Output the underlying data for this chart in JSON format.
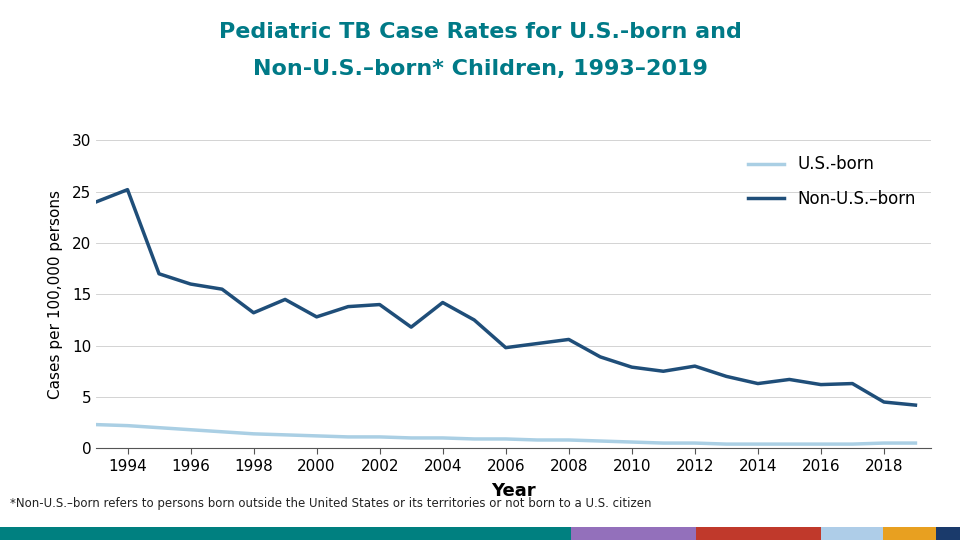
{
  "title_line1": "Pediatric TB Case Rates for U.S.-born and",
  "title_line2": "Non-U.S.–born* Children, 1993–2019",
  "title_color": "#007A87",
  "xlabel": "Year",
  "ylabel": "Cases per 100,000 persons",
  "footnote": "*Non-U.S.–born refers to persons born outside the United States or its territories or not born to a U.S. citizen",
  "ylim": [
    0,
    30
  ],
  "yticks": [
    0,
    5,
    10,
    15,
    20,
    25,
    30
  ],
  "years": [
    1993,
    1994,
    1995,
    1996,
    1997,
    1998,
    1999,
    2000,
    2001,
    2002,
    2003,
    2004,
    2005,
    2006,
    2007,
    2008,
    2009,
    2010,
    2011,
    2012,
    2013,
    2014,
    2015,
    2016,
    2017,
    2018,
    2019
  ],
  "us_born": [
    2.3,
    2.2,
    2.0,
    1.8,
    1.6,
    1.4,
    1.3,
    1.2,
    1.1,
    1.1,
    1.0,
    1.0,
    0.9,
    0.9,
    0.8,
    0.8,
    0.7,
    0.6,
    0.5,
    0.5,
    0.4,
    0.4,
    0.4,
    0.4,
    0.4,
    0.5,
    0.5
  ],
  "non_us_born": [
    24.0,
    25.2,
    17.0,
    16.0,
    15.5,
    13.2,
    14.5,
    12.8,
    13.8,
    14.0,
    11.8,
    14.2,
    12.5,
    9.8,
    10.2,
    10.6,
    8.9,
    7.9,
    7.5,
    8.0,
    7.0,
    6.3,
    6.7,
    6.2,
    6.3,
    4.5,
    4.2
  ],
  "us_born_color": "#aacfe4",
  "non_us_born_color": "#1f4e79",
  "us_born_label": "U.S.-born",
  "non_us_born_label": "Non-U.S.–born",
  "background_color": "#ffffff",
  "xtick_labels": [
    "1994",
    "1996",
    "1998",
    "2000",
    "2002",
    "2004",
    "2006",
    "2008",
    "2010",
    "2012",
    "2014",
    "2016",
    "2018"
  ],
  "xtick_positions": [
    1994,
    1996,
    1998,
    2000,
    2002,
    2004,
    2006,
    2008,
    2010,
    2012,
    2014,
    2016,
    2018
  ],
  "bar_colors": [
    "#008080",
    "#9370BB",
    "#C0392B",
    "#aecde8",
    "#E8A020",
    "#1a3a6b"
  ],
  "bar_widths": [
    0.595,
    0.13,
    0.13,
    0.065,
    0.055,
    0.025
  ]
}
